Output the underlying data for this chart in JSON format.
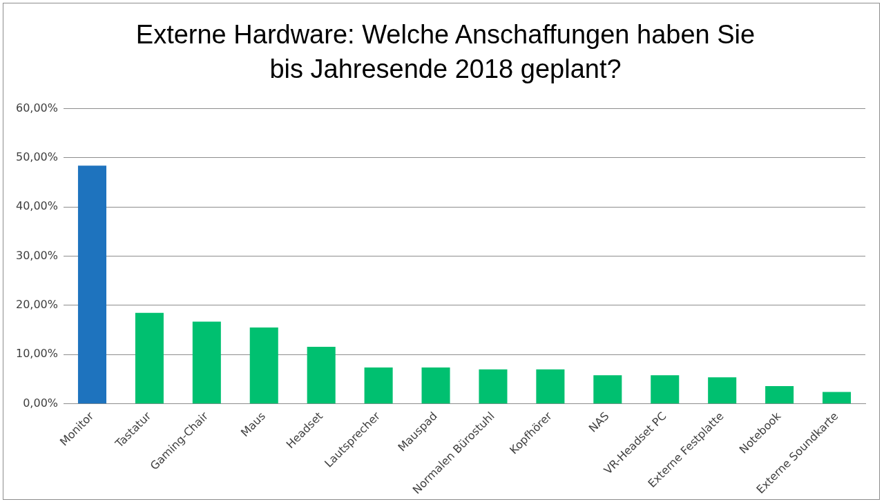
{
  "chart_data": {
    "type": "bar",
    "title": "Externe Hardware: Welche Anschaffungen haben Sie bis Jahresende 2018 geplant?",
    "categories": [
      "Monitor",
      "Tastatur",
      "Gaming-Chair",
      "Maus",
      "Headset",
      "Lautsprecher",
      "Mauspad",
      "Normalen Bürostuhl",
      "Kopfhörer",
      "NAS",
      "VR-Headset PC",
      "Externe Festplatte",
      "Notebook",
      "Externe Soundkarte"
    ],
    "values": [
      48.4,
      18.5,
      16.7,
      15.5,
      11.6,
      7.4,
      7.4,
      7.0,
      7.0,
      5.8,
      5.8,
      5.4,
      3.6,
      2.4
    ],
    "colors": [
      "#1e73be",
      "#00c070",
      "#00c070",
      "#00c070",
      "#00c070",
      "#00c070",
      "#00c070",
      "#00c070",
      "#00c070",
      "#00c070",
      "#00c070",
      "#00c070",
      "#00c070",
      "#00c070"
    ],
    "ylim": [
      0,
      60
    ],
    "yticks": [
      {
        "value": 0,
        "label": "0,00%"
      },
      {
        "value": 10,
        "label": "10,00%"
      },
      {
        "value": 20,
        "label": "20,00%"
      },
      {
        "value": 30,
        "label": "30,00%"
      },
      {
        "value": 40,
        "label": "40,00%"
      },
      {
        "value": 50,
        "label": "50,00%"
      },
      {
        "value": 60,
        "label": "60,00%"
      }
    ],
    "grid": "y",
    "legend": false
  }
}
